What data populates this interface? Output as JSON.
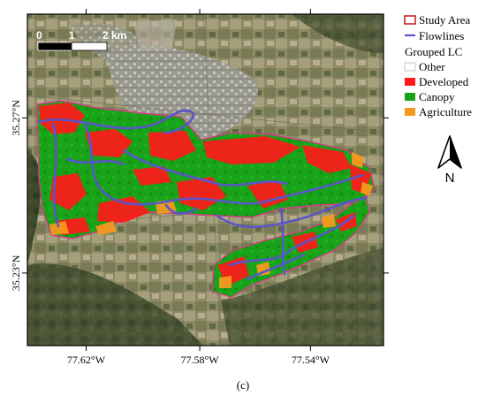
{
  "map": {
    "y_ticks": [
      {
        "label": "35.27°N",
        "frac": 0.313
      },
      {
        "label": "35.23°N",
        "frac": 0.781
      }
    ],
    "x_ticks": [
      {
        "label": "77.62°W",
        "frac": 0.165
      },
      {
        "label": "77.58°W",
        "frac": 0.484
      },
      {
        "label": "77.54°W",
        "frac": 0.795
      }
    ]
  },
  "scale_bar": {
    "labels": [
      "0",
      "1",
      "2 km"
    ],
    "unit": "km"
  },
  "legend": {
    "items": [
      {
        "label": "Study Area",
        "symbol": "outline",
        "color": "#c4242b"
      },
      {
        "label": "Flowlines",
        "symbol": "line",
        "color": "#5a55c8"
      }
    ],
    "group_title": "Grouped LC",
    "classes": [
      {
        "label": "Other",
        "color": "#ffffff"
      },
      {
        "label": "Developed",
        "color": "#ff1a1a"
      },
      {
        "label": "Canopy",
        "color": "#19a319"
      },
      {
        "label": "Agriculture",
        "color": "#f59a1f"
      }
    ]
  },
  "north_arrow": {
    "label": "N"
  },
  "caption": "(c)"
}
